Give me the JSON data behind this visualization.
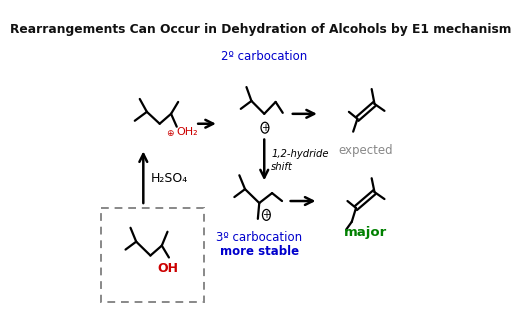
{
  "title": "Rearrangements Can Occur in Dehydration of Alcohols by E1 mechanism",
  "bg_color": "#ffffff",
  "label_2o": "2º carbocation",
  "label_3o": "3º carbocation",
  "label_more_stable": "more stable",
  "label_expected": "expected",
  "label_major": "major",
  "label_shift": "1,2-hydride\nshift",
  "label_h2so4": "H₂SO₄",
  "label_oh2": "OH₂",
  "label_oh": "OH",
  "color_blue": "#0000cc",
  "color_red": "#cc0000",
  "color_green": "#008000",
  "color_gray": "#888888",
  "color_black": "#111111"
}
